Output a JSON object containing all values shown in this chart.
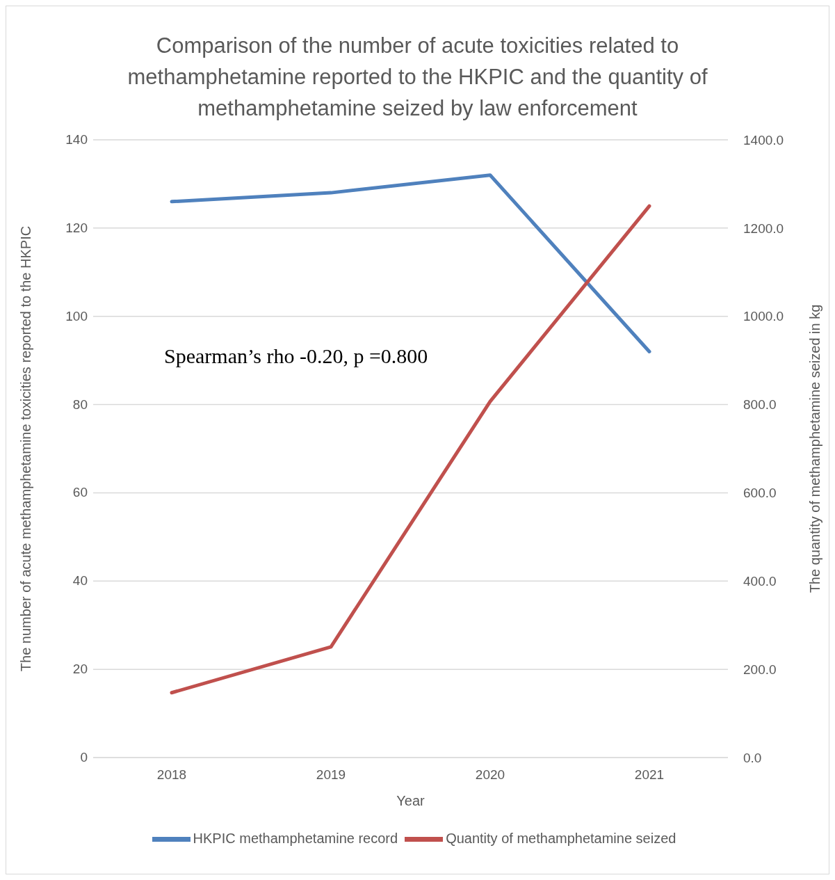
{
  "chart_data": {
    "type": "line",
    "title": "Comparison of the number of acute toxicities related to methamphetamine reported to the HKPIC and the quantity of methamphetamine seized by law enforcement",
    "xlabel": "Year",
    "ylabel": "The number of acute methamphetamine toxicities reported to the HKPIC",
    "y2label": "The quantity of methamphetamine seized in kg",
    "categories": [
      "2018",
      "2019",
      "2020",
      "2021"
    ],
    "series": [
      {
        "name": "HKPIC methamphetamine record",
        "color": "#4f81bd",
        "values": [
          126,
          128,
          132,
          92
        ]
      },
      {
        "name": "Quantity of methamphetamine seized",
        "color": "#c0504d",
        "axis": "y2",
        "values": [
          147,
          251,
          807,
          1250
        ]
      }
    ],
    "ylim": [
      0,
      140
    ],
    "yticks": [
      0,
      20,
      40,
      60,
      80,
      100,
      120,
      140
    ],
    "y2lim": [
      0,
      1400
    ],
    "y2ticks": [
      {
        "value": 0,
        "label": "0.0"
      },
      {
        "value": 200,
        "label": "200.0"
      },
      {
        "value": 400,
        "label": "400.0"
      },
      {
        "value": 600,
        "label": "600.0"
      },
      {
        "value": 800,
        "label": "800.0"
      },
      {
        "value": 1000,
        "label": "1000.0"
      },
      {
        "value": 1200,
        "label": "1200.0"
      },
      {
        "value": 1400,
        "label": "1400.0"
      }
    ],
    "annotations": [
      "Spearman’s rho -0.20, p =0.800"
    ],
    "grid": "y",
    "legend": "bottom",
    "marker": "none",
    "line_style": "solid"
  }
}
